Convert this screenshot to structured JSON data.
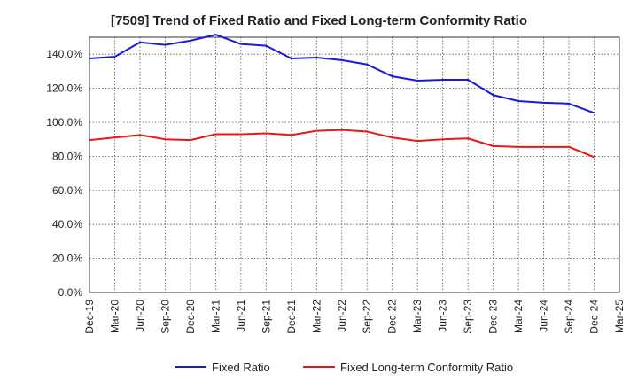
{
  "chart_data": {
    "type": "line",
    "title": "[7509]  Trend of Fixed Ratio and Fixed Long-term Conformity Ratio",
    "xlabel": "",
    "ylabel": "",
    "categories": [
      "Dec-19",
      "Mar-20",
      "Jun-20",
      "Sep-20",
      "Dec-20",
      "Mar-21",
      "Jun-21",
      "Sep-21",
      "Dec-21",
      "Mar-22",
      "Jun-22",
      "Sep-22",
      "Dec-22",
      "Mar-23",
      "Jun-23",
      "Sep-23",
      "Dec-23",
      "Mar-24",
      "Jun-24",
      "Sep-24",
      "Dec-24",
      "Mar-25"
    ],
    "ylim": [
      0,
      150
    ],
    "yticks": [
      0,
      20,
      40,
      60,
      80,
      100,
      120,
      140
    ],
    "ytick_labels": [
      "0.0%",
      "20.0%",
      "40.0%",
      "60.0%",
      "80.0%",
      "100.0%",
      "120.0%",
      "140.0%"
    ],
    "grid": true,
    "legend_position": "bottom",
    "series": [
      {
        "name": "Fixed Ratio",
        "color": "#1a1adb",
        "values": [
          137.5,
          138.5,
          147.0,
          145.5,
          148.0,
          151.5,
          146.0,
          145.0,
          137.5,
          138.0,
          136.5,
          134.0,
          127.0,
          124.5,
          125.0,
          125.0,
          116.0,
          112.5,
          111.5,
          111.0,
          105.5,
          null
        ]
      },
      {
        "name": "Fixed Long-term Conformity Ratio",
        "color": "#e81818",
        "values": [
          89.5,
          91.0,
          92.5,
          90.0,
          89.5,
          93.0,
          93.0,
          93.5,
          92.5,
          95.0,
          95.5,
          94.5,
          91.0,
          89.0,
          90.0,
          90.5,
          86.0,
          85.5,
          85.5,
          85.5,
          79.5,
          null
        ]
      }
    ]
  }
}
